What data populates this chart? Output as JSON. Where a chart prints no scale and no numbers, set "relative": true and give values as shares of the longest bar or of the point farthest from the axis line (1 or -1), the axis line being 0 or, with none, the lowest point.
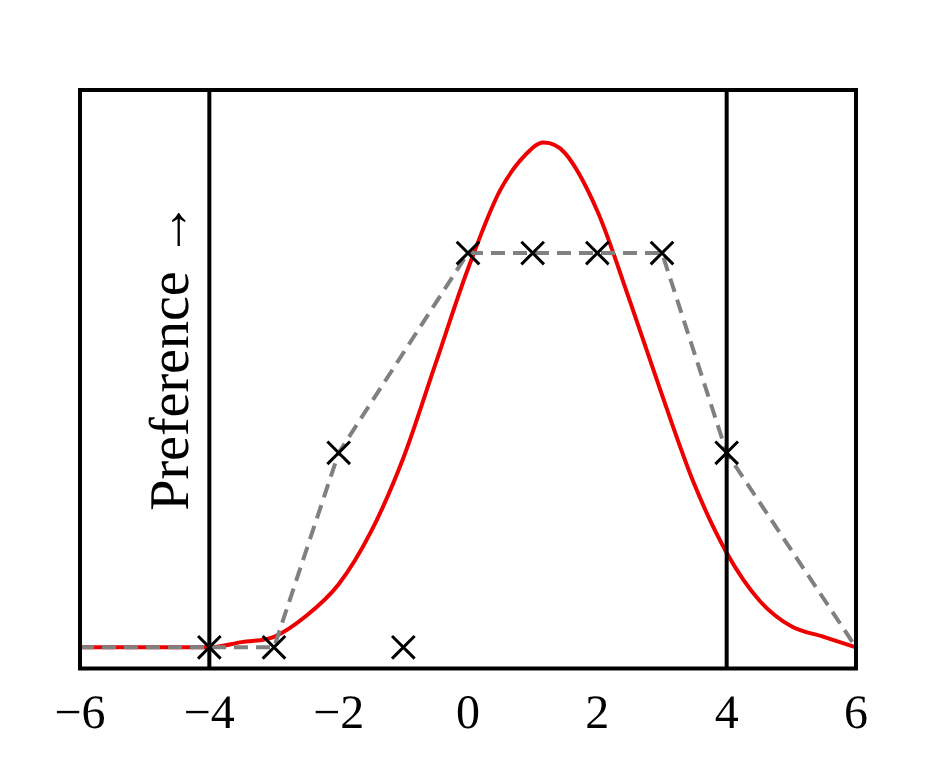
{
  "chart_data": {
    "type": "line",
    "ylabel": "Preference →",
    "relative": true,
    "xlim": [
      -6,
      6
    ],
    "xticks": [
      -6,
      -4,
      -2,
      0,
      2,
      4,
      6
    ],
    "legend": false,
    "grid": false,
    "ref_lines": [
      {
        "axis": "x",
        "value": -4,
        "color": "#000000"
      },
      {
        "axis": "x",
        "value": 4,
        "color": "#000000"
      }
    ],
    "series": [
      {
        "color": "#ee0000",
        "line_style": "solid",
        "marker": "none",
        "x": [
          -6,
          -5,
          -4,
          -3.5,
          -3,
          -2.5,
          -2,
          -1.5,
          -1,
          -0.5,
          0,
          0.5,
          1,
          1.17,
          1.5,
          2,
          2.5,
          3,
          3.5,
          4,
          4.5,
          5,
          5.5,
          6
        ],
        "values": [
          0.04,
          0.04,
          0.04,
          0.05,
          0.06,
          0.1,
          0.16,
          0.26,
          0.4,
          0.58,
          0.76,
          0.91,
          0.99,
          1,
          0.98,
          0.87,
          0.7,
          0.52,
          0.35,
          0.22,
          0.13,
          0.08,
          0.06,
          0.04
        ]
      },
      {
        "color": "#808080",
        "line_style": "dashed",
        "marker": "none",
        "x": [
          -6,
          -4,
          -3,
          -2,
          0,
          1,
          2,
          3,
          4,
          6
        ],
        "values": [
          0.04,
          0.04,
          0.04,
          0.41,
          0.79,
          0.79,
          0.79,
          0.79,
          0.41,
          0.04
        ]
      },
      {
        "type": "scatter",
        "color": "#000000",
        "marker": "cross",
        "x": [
          -4,
          -3,
          -2,
          -1,
          0,
          1,
          2,
          3,
          4
        ],
        "values": [
          0.04,
          0.04,
          0.41,
          0.04,
          0.79,
          0.79,
          0.79,
          0.79,
          0.41
        ]
      }
    ]
  }
}
